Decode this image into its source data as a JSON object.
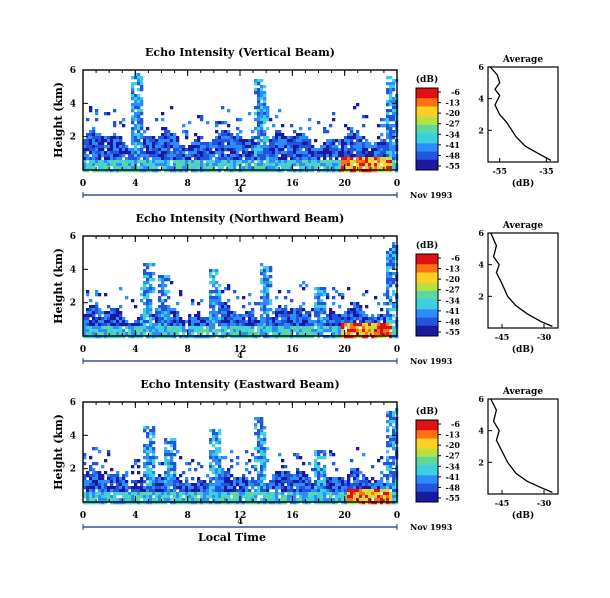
{
  "chart_data": [
    {
      "type": "heatmap",
      "title": "Echo Intensity (Vertical Beam)",
      "ylabel": "Height (km)",
      "y_ticks": [
        "2",
        "4",
        "6"
      ],
      "ylim": [
        0,
        6
      ],
      "x_ticks": [
        "0",
        "4",
        "8",
        "12",
        "16",
        "20",
        "0"
      ],
      "xlim": [
        0,
        24
      ],
      "date_label": "Nov 1993",
      "day_marker": "4",
      "colorbar": {
        "unit": "(dB)",
        "ticks": [
          "-6",
          "-13",
          "-20",
          "-27",
          "-34",
          "-41",
          "-48",
          "-55"
        ]
      },
      "base_height_km": 2.0,
      "columns": [
        {
          "x": 4,
          "height": 6.0
        },
        {
          "x": 13.5,
          "height": 5.5
        },
        {
          "x": 13.7,
          "height": 4.0
        },
        {
          "x": 23.5,
          "height": 5.8
        }
      ],
      "hot_region": {
        "x": [
          19.5,
          23.5
        ],
        "y": [
          0,
          0.9
        ]
      },
      "average_profile": {
        "title": "Average",
        "xlabel": "(dB)",
        "x_ticks": [
          "-55",
          "-35"
        ],
        "xlim": [
          -60,
          -30
        ],
        "y_ticks": [
          "2",
          "4",
          "6"
        ],
        "ylim": [
          0,
          6
        ],
        "points": [
          [
            -59,
            6.0
          ],
          [
            -56,
            5.5
          ],
          [
            -55,
            5.0
          ],
          [
            -57,
            4.6
          ],
          [
            -55,
            4.2
          ],
          [
            -57,
            3.6
          ],
          [
            -55,
            3.0
          ],
          [
            -52,
            2.5
          ],
          [
            -48,
            1.6
          ],
          [
            -44,
            1.0
          ],
          [
            -38,
            0.5
          ],
          [
            -33,
            0.1
          ]
        ]
      }
    },
    {
      "type": "heatmap",
      "title": "Echo Intensity (Northward Beam)",
      "ylabel": "Height (km)",
      "y_ticks": [
        "2",
        "4",
        "6"
      ],
      "ylim": [
        0,
        6
      ],
      "x_ticks": [
        "0",
        "4",
        "8",
        "12",
        "16",
        "20",
        "0"
      ],
      "xlim": [
        0,
        24
      ],
      "date_label": "Nov 1993",
      "day_marker": "4",
      "colorbar": {
        "unit": "(dB)",
        "ticks": [
          "-6",
          "-13",
          "-20",
          "-27",
          "-34",
          "-41",
          "-48",
          "-55"
        ]
      },
      "base_height_km": 1.5,
      "columns": [
        {
          "x": 4.8,
          "height": 4.5
        },
        {
          "x": 6,
          "height": 3.8
        },
        {
          "x": 10,
          "height": 4.2
        },
        {
          "x": 13.8,
          "height": 4.5
        },
        {
          "x": 18,
          "height": 3.0
        },
        {
          "x": 23.5,
          "height": 5.8
        }
      ],
      "hot_region": {
        "x": [
          19.5,
          23.5
        ],
        "y": [
          0,
          0.9
        ]
      },
      "average_profile": {
        "title": "Average",
        "xlabel": "(dB)",
        "x_ticks": [
          "-45",
          "-30"
        ],
        "xlim": [
          -50,
          -25
        ],
        "y_ticks": [
          "2",
          "4",
          "6"
        ],
        "ylim": [
          0,
          6
        ],
        "points": [
          [
            -49,
            6.0
          ],
          [
            -47,
            5.2
          ],
          [
            -48,
            4.5
          ],
          [
            -46,
            4.0
          ],
          [
            -47,
            3.5
          ],
          [
            -45,
            2.8
          ],
          [
            -43,
            2.0
          ],
          [
            -40,
            1.4
          ],
          [
            -36,
            0.9
          ],
          [
            -31,
            0.4
          ],
          [
            -27,
            0.1
          ]
        ]
      }
    },
    {
      "type": "heatmap",
      "title": "Echo Intensity (Eastward Beam)",
      "ylabel": "Height (km)",
      "y_ticks": [
        "2",
        "4",
        "6"
      ],
      "ylim": [
        0,
        6
      ],
      "x_ticks": [
        "0",
        "4",
        "8",
        "12",
        "16",
        "20",
        "0"
      ],
      "xlim": [
        0,
        24
      ],
      "date_label": "Nov 1993",
      "day_marker": "4",
      "xlabel": "Local Time",
      "colorbar": {
        "unit": "(dB)",
        "ticks": [
          "-6",
          "-13",
          "-20",
          "-27",
          "-34",
          "-41",
          "-48",
          "-55"
        ]
      },
      "base_height_km": 1.6,
      "columns": [
        {
          "x": 5,
          "height": 4.6
        },
        {
          "x": 6.5,
          "height": 4.0
        },
        {
          "x": 10,
          "height": 4.5
        },
        {
          "x": 13.5,
          "height": 5.2
        },
        {
          "x": 18,
          "height": 3.2
        },
        {
          "x": 23.5,
          "height": 5.8
        }
      ],
      "hot_region": {
        "x": [
          20,
          23.5
        ],
        "y": [
          0,
          0.8
        ]
      },
      "average_profile": {
        "title": "Average",
        "xlabel": "(dB)",
        "x_ticks": [
          "-45",
          "-30"
        ],
        "xlim": [
          -50,
          -25
        ],
        "y_ticks": [
          "2",
          "4",
          "6"
        ],
        "ylim": [
          0,
          6
        ],
        "points": [
          [
            -49,
            6.0
          ],
          [
            -47,
            5.3
          ],
          [
            -48,
            4.6
          ],
          [
            -46,
            4.0
          ],
          [
            -47,
            3.4
          ],
          [
            -45,
            2.7
          ],
          [
            -43,
            2.0
          ],
          [
            -40,
            1.3
          ],
          [
            -36,
            0.8
          ],
          [
            -31,
            0.4
          ],
          [
            -27,
            0.1
          ]
        ]
      }
    }
  ],
  "colors": {
    "scale": [
      "#1a1aa0",
      "#2255dd",
      "#2a8cff",
      "#3ccfe0",
      "#5ad8a0",
      "#b8e040",
      "#ffd020",
      "#ff7010",
      "#e01010"
    ]
  }
}
